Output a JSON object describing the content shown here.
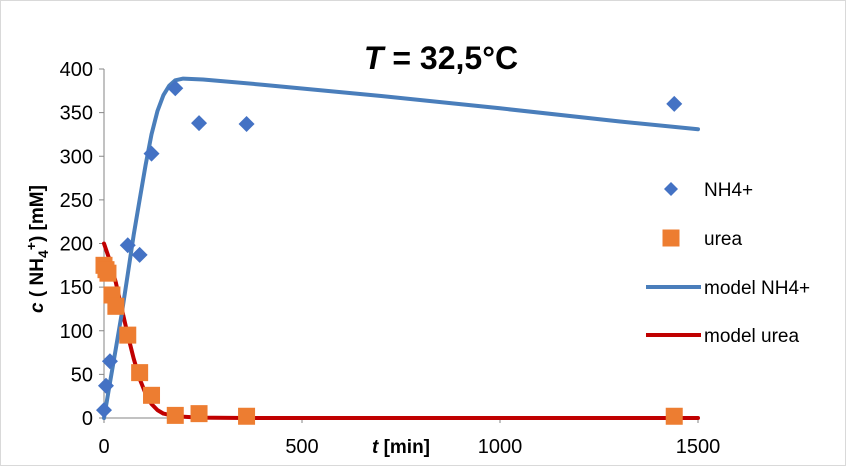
{
  "chart_data": {
    "type": "scatter",
    "title_prefix": "T",
    "title_suffix": " = 32,5°C",
    "xlabel_var": "t",
    "xlabel_unit": " [min]",
    "ylabel_var": "c",
    "ylabel_species": "NH",
    "ylabel_subscript": "4",
    "ylabel_superscript": "+",
    "ylabel_unit": "[mM]",
    "xlim": [
      0,
      1500
    ],
    "ylim": [
      0,
      400
    ],
    "x_ticks": [
      0,
      500,
      1000,
      1500
    ],
    "y_ticks": [
      0,
      50,
      100,
      150,
      200,
      250,
      300,
      350,
      400
    ],
    "x_tick_labels": [
      "0",
      "500",
      "1000",
      "1500"
    ],
    "y_tick_labels": [
      "0",
      "50",
      "100",
      "150",
      "200",
      "250",
      "300",
      "350",
      "400"
    ],
    "grid": false,
    "legend_position": "right",
    "series": [
      {
        "name": "NH4+",
        "kind": "scatter",
        "marker": "diamond",
        "color": "#4472c4",
        "points": [
          [
            0,
            9
          ],
          [
            5,
            37
          ],
          [
            15,
            65
          ],
          [
            60,
            198
          ],
          [
            90,
            187
          ],
          [
            120,
            303
          ],
          [
            180,
            378
          ],
          [
            240,
            338
          ],
          [
            360,
            337
          ],
          [
            1440,
            360
          ]
        ]
      },
      {
        "name": "urea",
        "kind": "scatter",
        "marker": "square",
        "color": "#ed7d31",
        "points": [
          [
            0,
            175
          ],
          [
            5,
            170
          ],
          [
            10,
            166
          ],
          [
            20,
            141
          ],
          [
            30,
            128
          ],
          [
            60,
            95
          ],
          [
            90,
            52
          ],
          [
            120,
            26
          ],
          [
            180,
            3
          ],
          [
            240,
            5
          ],
          [
            360,
            2
          ],
          [
            1440,
            2
          ]
        ]
      },
      {
        "name": "model NH4+",
        "kind": "line",
        "color": "#4a7ebb",
        "points": [
          [
            0,
            0
          ],
          [
            15,
            40
          ],
          [
            30,
            80
          ],
          [
            45,
            120
          ],
          [
            60,
            165
          ],
          [
            75,
            210
          ],
          [
            90,
            250
          ],
          [
            105,
            290
          ],
          [
            120,
            325
          ],
          [
            135,
            352
          ],
          [
            150,
            370
          ],
          [
            165,
            381
          ],
          [
            180,
            387
          ],
          [
            200,
            389
          ],
          [
            250,
            388
          ],
          [
            400,
            382
          ],
          [
            700,
            369
          ],
          [
            1000,
            355
          ],
          [
            1300,
            340
          ],
          [
            1500,
            331
          ]
        ]
      },
      {
        "name": "model urea",
        "kind": "line",
        "color": "#c00000",
        "points": [
          [
            0,
            200
          ],
          [
            15,
            180
          ],
          [
            30,
            155
          ],
          [
            45,
            125
          ],
          [
            60,
            95
          ],
          [
            75,
            68
          ],
          [
            90,
            45
          ],
          [
            105,
            28
          ],
          [
            120,
            16
          ],
          [
            135,
            9
          ],
          [
            150,
            5
          ],
          [
            180,
            2
          ],
          [
            240,
            0.5
          ],
          [
            360,
            0
          ],
          [
            1500,
            0
          ]
        ]
      }
    ]
  }
}
